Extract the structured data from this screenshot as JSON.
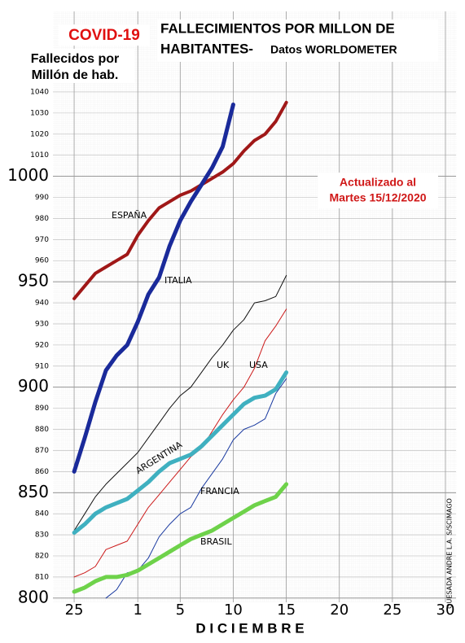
{
  "chart_data": {
    "type": "line",
    "badge": "COVID-19",
    "title": [
      "FALLECIMIENTOS POR MILLON DE",
      "HABITANTES-"
    ],
    "subtitle": "Datos WORLDOMETER",
    "y_label": [
      "Fallecidos por",
      "Millón de hab."
    ],
    "annotation": [
      "Actualizado al",
      "Martes 15/12/2020"
    ],
    "x_label": "D I C I E M B R E",
    "signature": "QUESADA ANDRE L.A. S/SCIMAGO",
    "x": [
      0,
      1,
      2,
      3,
      4,
      5,
      6,
      7,
      8,
      9,
      10,
      11,
      12,
      13,
      14,
      15,
      16,
      17,
      18,
      19,
      20
    ],
    "xlim": [
      -2,
      36
    ],
    "xticks": [
      {
        "value": 0,
        "label": "25"
      },
      {
        "value": 6,
        "label": "1"
      },
      {
        "value": 10,
        "label": "5"
      },
      {
        "value": 15,
        "label": "10"
      },
      {
        "value": 20,
        "label": "15"
      },
      {
        "value": 25,
        "label": "20"
      },
      {
        "value": 30,
        "label": "25"
      },
      {
        "value": 35,
        "label": "30"
      }
    ],
    "ylim": [
      798,
      1045
    ],
    "yticks": [
      800,
      810,
      820,
      830,
      840,
      850,
      860,
      870,
      880,
      890,
      900,
      910,
      920,
      930,
      940,
      950,
      960,
      970,
      980,
      990,
      1000,
      1010,
      1020,
      1030,
      1040
    ],
    "grid": true,
    "series": [
      {
        "name": "ESPAÑA",
        "color": "#a01818",
        "line_width": 4,
        "values": [
          942,
          948,
          954,
          957,
          960,
          963,
          972,
          979,
          985,
          988,
          991,
          993,
          996,
          999,
          1002,
          1006,
          1012,
          1017,
          1020,
          1026,
          1035
        ]
      },
      {
        "name": "ITALIA",
        "color": "#1a2a9a",
        "line_width": 5,
        "values": [
          860,
          876,
          893,
          908,
          915,
          920,
          931,
          944,
          952,
          967,
          979,
          988,
          996,
          1004,
          1014,
          1034,
          null,
          null,
          null,
          null,
          null
        ]
      },
      {
        "name": "UK",
        "color": "#111111",
        "line_width": 1,
        "values": [
          832,
          840,
          848,
          854,
          859,
          864,
          869,
          876,
          883,
          890,
          896,
          900,
          907,
          914,
          920,
          927,
          932,
          940,
          941,
          943,
          953
        ]
      },
      {
        "name": "USA",
        "color": "#cc1a1a",
        "line_width": 1,
        "values": [
          810,
          812,
          815,
          823,
          825,
          827,
          835,
          843,
          849,
          855,
          861,
          867,
          871,
          879,
          887,
          894,
          900,
          909,
          922,
          929,
          937
        ]
      },
      {
        "name": "ARGENTINA",
        "color": "#3fb0c0",
        "line_width": 5,
        "values": [
          831,
          835,
          840,
          843,
          845,
          847,
          851,
          855,
          860,
          864,
          866,
          868,
          872,
          877,
          882,
          887,
          892,
          895,
          896,
          899,
          907
        ]
      },
      {
        "name": "FRANCIA",
        "color": "#1a3aa0",
        "line_width": 1,
        "values": [
          null,
          null,
          null,
          800,
          804,
          812,
          813,
          819,
          829,
          835,
          840,
          843,
          852,
          859,
          866,
          875,
          880,
          882,
          885,
          897,
          904
        ]
      },
      {
        "name": "BRASIL",
        "color": "#6ed24a",
        "line_width": 5,
        "values": [
          803,
          805,
          808,
          810,
          810,
          811,
          813,
          816,
          819,
          822,
          825,
          828,
          830,
          832,
          835,
          838,
          841,
          844,
          846,
          848,
          854
        ]
      }
    ]
  }
}
